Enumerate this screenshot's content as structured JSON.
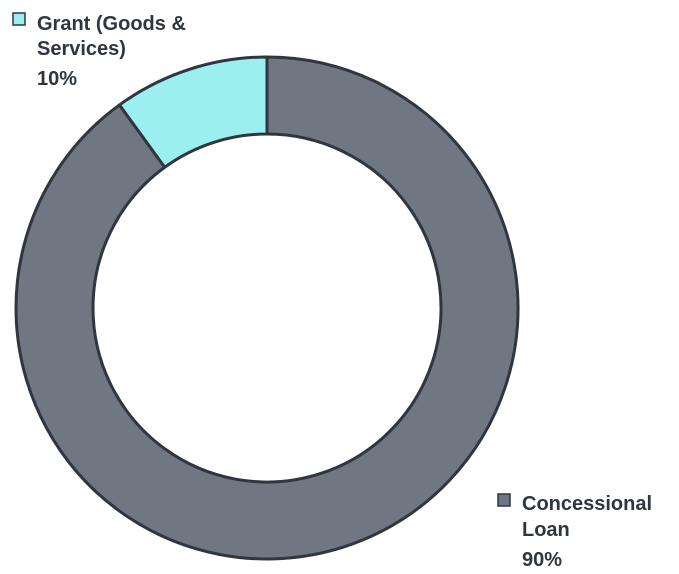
{
  "chart_data": {
    "type": "pie",
    "donut": true,
    "title": "",
    "slices": [
      {
        "label_lines": [
          "Concessional",
          "Loan"
        ],
        "value_label": "90%",
        "value": 90,
        "color": "#6f7782"
      },
      {
        "label_lines": [
          "Grant (Goods &",
          "Services)"
        ],
        "value_label": "10%",
        "value": 10,
        "color": "#9befef"
      }
    ],
    "legend": "data labels beside slices"
  }
}
